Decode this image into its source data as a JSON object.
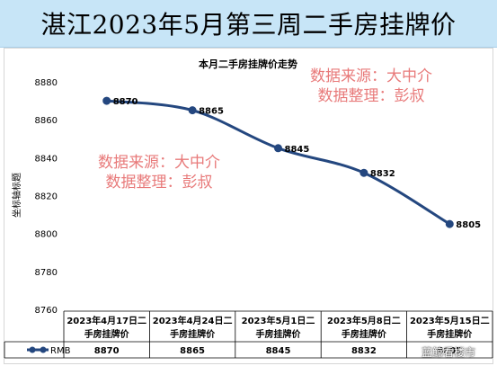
{
  "page": {
    "banner_title": "湛江2023年5月第三周二手房挂牌价",
    "watermark_line1": "数据来源：大中介",
    "watermark_line2": "数据整理：彭叔",
    "corner_mark": "蓝鲸看楼市"
  },
  "chart_data": {
    "type": "line",
    "title": "本月二手房挂牌价走势",
    "ylabel": "坐标轴标题",
    "xlabel": "",
    "categories": [
      "2023年4月17日二手房挂牌价",
      "2023年4月24日二手房挂牌价",
      "2023年5月1日二手房挂牌价",
      "2023年5月8日二手房挂牌价",
      "2023年5月15日二手房挂牌价"
    ],
    "category_lines": [
      [
        "2023年4月17日二",
        "手房挂牌价"
      ],
      [
        "2023年4月24日二",
        "手房挂牌价"
      ],
      [
        "2023年5月1日二",
        "手房挂牌价"
      ],
      [
        "2023年5月8日二",
        "手房挂牌价"
      ],
      [
        "2023年5月15日二",
        "手房挂牌价"
      ]
    ],
    "series": [
      {
        "name": "RMB",
        "values": [
          8870,
          8865,
          8845,
          8832,
          8805
        ]
      }
    ],
    "data_labels": [
      "8870",
      "8865",
      "8845",
      "8832",
      "8805"
    ],
    "ylim": [
      8760,
      8880
    ],
    "yticks": [
      8760,
      8780,
      8800,
      8820,
      8840,
      8860,
      8880
    ],
    "grid": false,
    "legend": "data-table",
    "colors": {
      "series": "#24477f",
      "banner": "#c7e5f7"
    }
  }
}
